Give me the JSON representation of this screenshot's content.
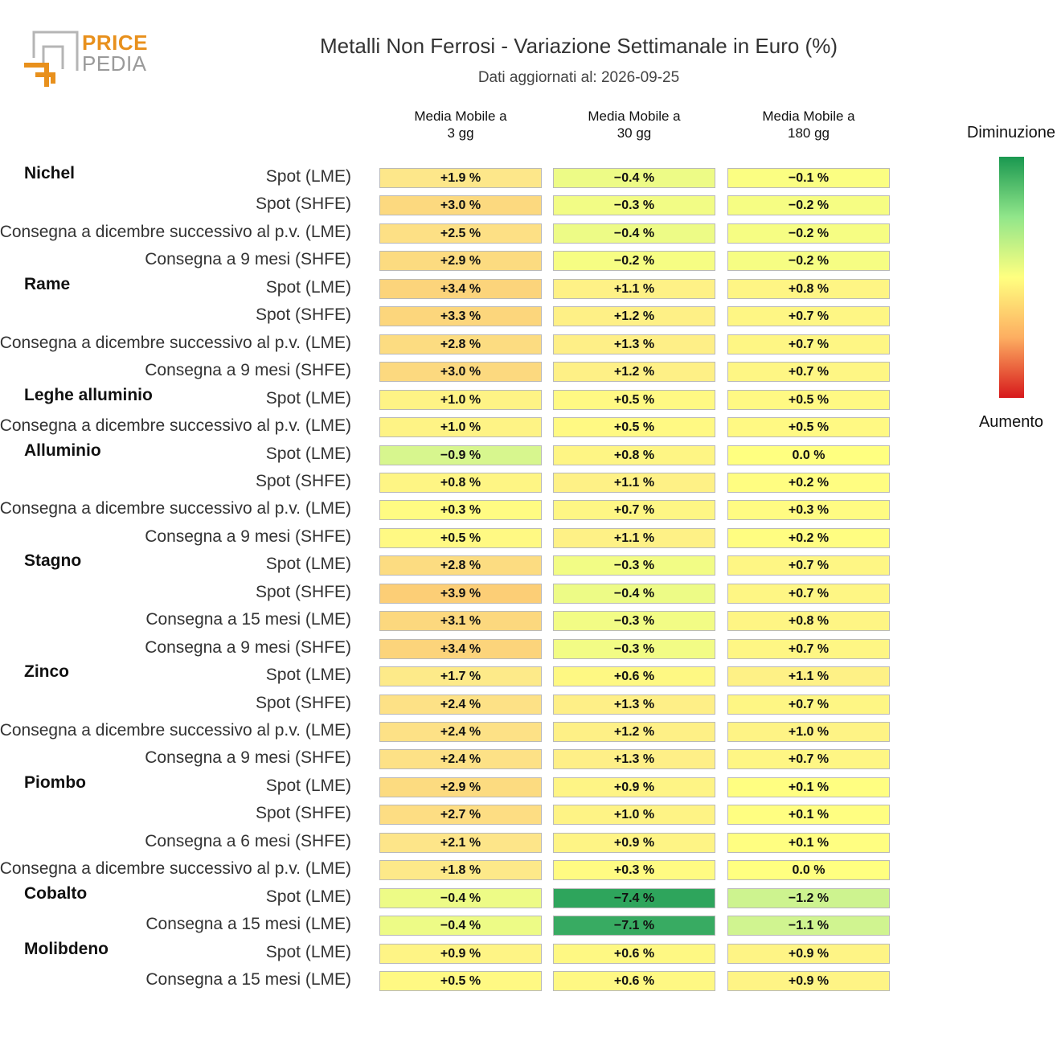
{
  "header": {
    "logo_top": "PRICE",
    "logo_bottom": "PEDIA",
    "title": "Metalli Non Ferrosi - Variazione Settimanale in Euro (%)",
    "subtitle": "Dati aggiornati al: 2026-09-25"
  },
  "legend": {
    "top_label": "Diminuzione",
    "bottom_label": "Aumento"
  },
  "colors": {
    "decrease": "#1a9850",
    "neutral": "#ffff80",
    "increase": "#d7191c"
  },
  "chart_data": {
    "type": "heatmap",
    "columns": [
      "Media Mobile a\n3 gg",
      "Media Mobile a\n30 gg",
      "Media Mobile a\n180 gg"
    ],
    "value_suffix": " %",
    "rows": [
      {
        "group": "Nichel",
        "label": "Spot (LME)",
        "values": [
          1.9,
          -0.4,
          -0.1
        ]
      },
      {
        "group": "",
        "label": "Spot (SHFE)",
        "values": [
          3.0,
          -0.3,
          -0.2
        ]
      },
      {
        "group": "",
        "label": "Consegna a dicembre successivo al p.v. (LME)",
        "values": [
          2.5,
          -0.4,
          -0.2
        ]
      },
      {
        "group": "",
        "label": "Consegna a 9 mesi (SHFE)",
        "values": [
          2.9,
          -0.2,
          -0.2
        ]
      },
      {
        "group": "Rame",
        "label": "Spot (LME)",
        "values": [
          3.4,
          1.1,
          0.8
        ]
      },
      {
        "group": "",
        "label": "Spot (SHFE)",
        "values": [
          3.3,
          1.2,
          0.7
        ]
      },
      {
        "group": "",
        "label": "Consegna a dicembre successivo al p.v. (LME)",
        "values": [
          2.8,
          1.3,
          0.7
        ]
      },
      {
        "group": "",
        "label": "Consegna a 9 mesi (SHFE)",
        "values": [
          3.0,
          1.2,
          0.7
        ]
      },
      {
        "group": "Leghe alluminio",
        "label": "Spot (LME)",
        "values": [
          1.0,
          0.5,
          0.5
        ]
      },
      {
        "group": "",
        "label": "Consegna a dicembre successivo al p.v. (LME)",
        "values": [
          1.0,
          0.5,
          0.5
        ]
      },
      {
        "group": "Alluminio",
        "label": "Spot (LME)",
        "values": [
          -0.9,
          0.8,
          0.0
        ]
      },
      {
        "group": "",
        "label": "Spot (SHFE)",
        "values": [
          0.8,
          1.1,
          0.2
        ]
      },
      {
        "group": "",
        "label": "Consegna a dicembre successivo al p.v. (LME)",
        "values": [
          0.3,
          0.7,
          0.3
        ]
      },
      {
        "group": "",
        "label": "Consegna a 9 mesi (SHFE)",
        "values": [
          0.5,
          1.1,
          0.2
        ]
      },
      {
        "group": "Stagno",
        "label": "Spot (LME)",
        "values": [
          2.8,
          -0.3,
          0.7
        ]
      },
      {
        "group": "",
        "label": "Spot (SHFE)",
        "values": [
          3.9,
          -0.4,
          0.7
        ]
      },
      {
        "group": "",
        "label": "Consegna a 15 mesi (LME)",
        "values": [
          3.1,
          -0.3,
          0.8
        ]
      },
      {
        "group": "",
        "label": "Consegna a 9 mesi (SHFE)",
        "values": [
          3.4,
          -0.3,
          0.7
        ]
      },
      {
        "group": "Zinco",
        "label": "Spot (LME)",
        "values": [
          1.7,
          0.6,
          1.1
        ]
      },
      {
        "group": "",
        "label": "Spot (SHFE)",
        "values": [
          2.4,
          1.3,
          0.7
        ]
      },
      {
        "group": "",
        "label": "Consegna a dicembre successivo al p.v. (LME)",
        "values": [
          2.4,
          1.2,
          1.0
        ]
      },
      {
        "group": "",
        "label": "Consegna a 9 mesi (SHFE)",
        "values": [
          2.4,
          1.3,
          0.7
        ]
      },
      {
        "group": "Piombo",
        "label": "Spot (LME)",
        "values": [
          2.9,
          0.9,
          0.1
        ]
      },
      {
        "group": "",
        "label": "Spot (SHFE)",
        "values": [
          2.7,
          1.0,
          0.1
        ]
      },
      {
        "group": "",
        "label": "Consegna a 6 mesi (SHFE)",
        "values": [
          2.1,
          0.9,
          0.1
        ]
      },
      {
        "group": "",
        "label": "Consegna a dicembre successivo al p.v. (LME)",
        "values": [
          1.8,
          0.3,
          0.0
        ]
      },
      {
        "group": "Cobalto",
        "label": "Spot (LME)",
        "values": [
          -0.4,
          -7.4,
          -1.2
        ]
      },
      {
        "group": "",
        "label": "Consegna a 15 mesi (LME)",
        "values": [
          -0.4,
          -7.1,
          -1.1
        ]
      },
      {
        "group": "Molibdeno",
        "label": "Spot (LME)",
        "values": [
          0.9,
          0.6,
          0.9
        ]
      },
      {
        "group": "",
        "label": "Consegna a 15 mesi (LME)",
        "values": [
          0.5,
          0.6,
          0.9
        ]
      }
    ]
  }
}
